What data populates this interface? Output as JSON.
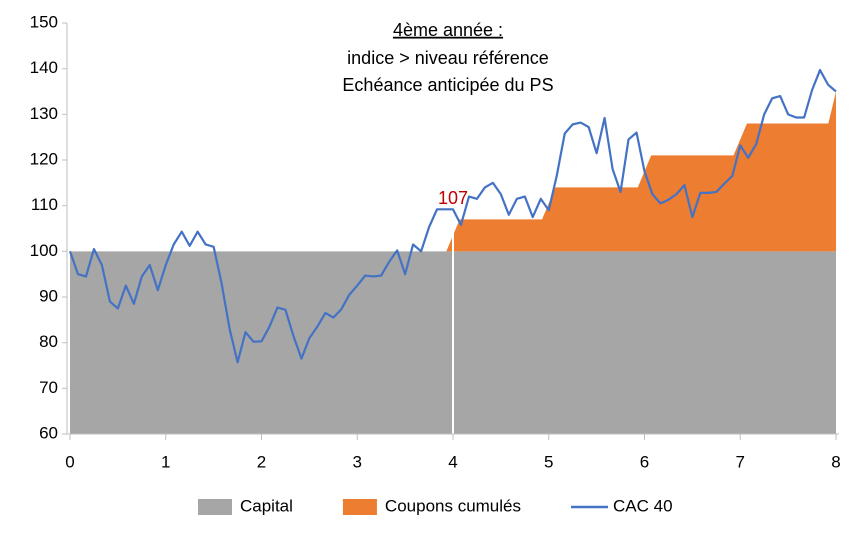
{
  "chart_data": {
    "type": "area-line",
    "annotation_lines": [
      "4ème année :",
      "indice > niveau référence",
      "Echéance anticipée du PS"
    ],
    "reference_x": 4,
    "callout": 107,
    "xlim": [
      0,
      8
    ],
    "xticks": [
      0,
      1,
      2,
      3,
      4,
      5,
      6,
      7,
      8
    ],
    "ylim": [
      60,
      150
    ],
    "yticks": [
      60,
      70,
      80,
      90,
      100,
      110,
      120,
      130,
      140,
      150
    ],
    "grid": false,
    "legend": "bottom",
    "series": [
      {
        "name": "Capital",
        "kind": "area",
        "color": "#a6a6a6",
        "x": [
          0,
          8
        ],
        "values": [
          100,
          100
        ]
      },
      {
        "name": "Coupons cumulés",
        "kind": "stacked-area",
        "color": "#ed7d31",
        "x": [
          0,
          3.93,
          4.07,
          4.93,
          5.07,
          5.93,
          6.07,
          6.93,
          7.07,
          7.92,
          8
        ],
        "values": [
          0,
          0,
          7,
          7,
          14,
          14,
          21,
          21,
          28,
          28,
          35
        ]
      },
      {
        "name": "CAC 40",
        "kind": "line",
        "color": "#4472c4",
        "x": [
          0,
          0.083,
          0.167,
          0.25,
          0.333,
          0.417,
          0.5,
          0.583,
          0.667,
          0.75,
          0.833,
          0.917,
          1,
          1.083,
          1.167,
          1.25,
          1.333,
          1.417,
          1.5,
          1.583,
          1.667,
          1.75,
          1.833,
          1.917,
          2,
          2.083,
          2.167,
          2.25,
          2.333,
          2.417,
          2.5,
          2.583,
          2.667,
          2.75,
          2.833,
          2.917,
          3,
          3.083,
          3.167,
          3.25,
          3.333,
          3.417,
          3.5,
          3.583,
          3.667,
          3.75,
          3.833,
          3.917,
          4,
          4.083,
          4.167,
          4.25,
          4.333,
          4.417,
          4.5,
          4.583,
          4.667,
          4.75,
          4.833,
          4.917,
          5,
          5.083,
          5.167,
          5.25,
          5.333,
          5.417,
          5.5,
          5.583,
          5.667,
          5.75,
          5.833,
          5.917,
          6,
          6.083,
          6.167,
          6.25,
          6.333,
          6.417,
          6.5,
          6.583,
          6.667,
          6.75,
          6.833,
          6.917,
          7,
          7.083,
          7.167,
          7.25,
          7.333,
          7.417,
          7.5,
          7.583,
          7.667,
          7.75,
          7.833,
          7.917,
          8
        ],
        "values": [
          100,
          95,
          94.5,
          100.5,
          97,
          89,
          87.5,
          92.5,
          88.5,
          94.5,
          97,
          91.5,
          97,
          101.5,
          104.3,
          101.2,
          104.3,
          101.5,
          101,
          93,
          83,
          75.7,
          82.3,
          80.2,
          80.3,
          83.5,
          87.7,
          87.2,
          81.5,
          76.5,
          81,
          83.5,
          86.5,
          85.5,
          87.3,
          90.5,
          92.5,
          94.7,
          94.5,
          94.7,
          97.7,
          100.2,
          95,
          101.5,
          100,
          105.3,
          109.2,
          109.2,
          109.2,
          105.8,
          112,
          111.5,
          114,
          115,
          112.5,
          108,
          111.5,
          112,
          107.5,
          111.5,
          109,
          116.5,
          125.8,
          127.8,
          128.2,
          127.2,
          121.5,
          129.2,
          118,
          113,
          124.5,
          126,
          117.5,
          112.5,
          110.5,
          111.3,
          112.5,
          114.5,
          107.5,
          112.8,
          112.8,
          113,
          114.8,
          116.5,
          123.2,
          120.5,
          123.5,
          130,
          133.5,
          134,
          130,
          129.3,
          129.3,
          135.3,
          139.7,
          136.5,
          135
        ]
      }
    ]
  }
}
